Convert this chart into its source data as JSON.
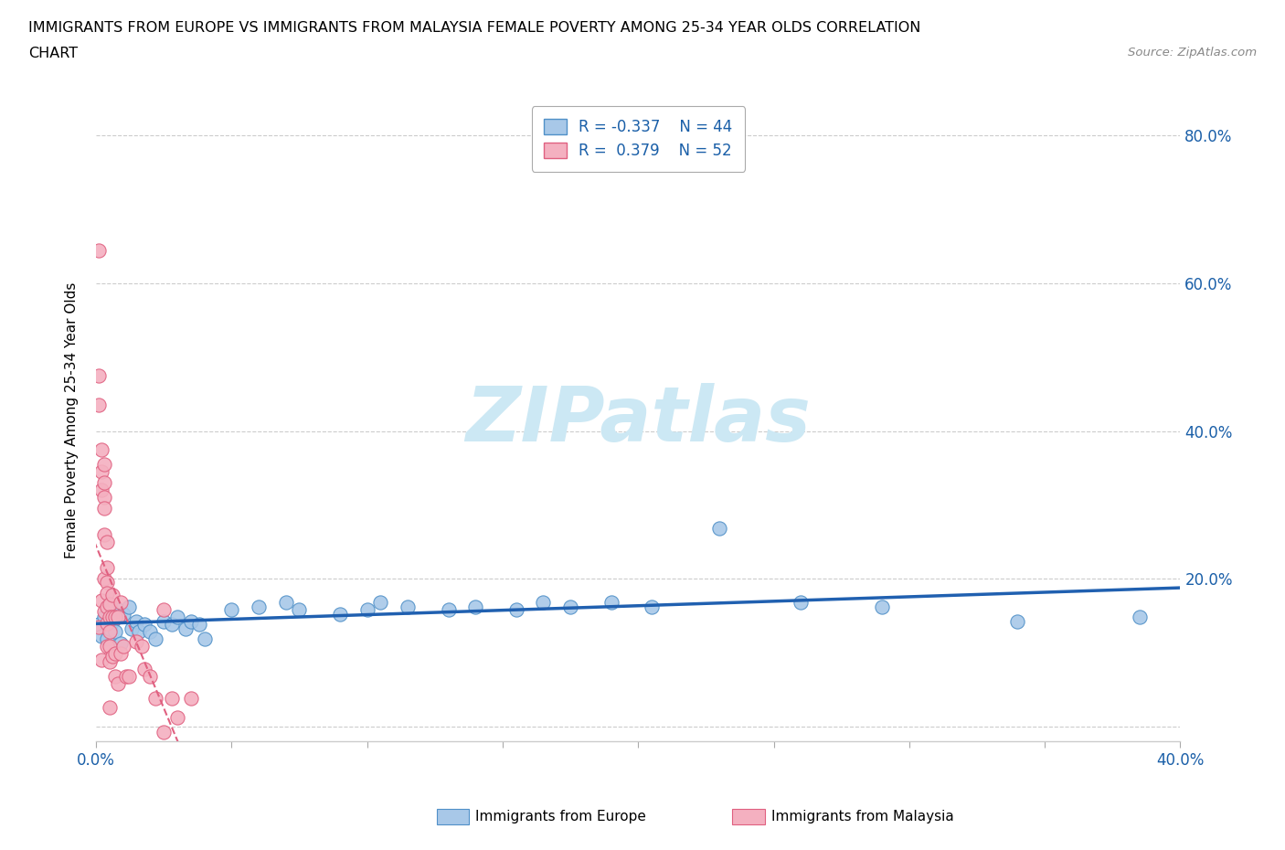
{
  "title_line1": "IMMIGRANTS FROM EUROPE VS IMMIGRANTS FROM MALAYSIA FEMALE POVERTY AMONG 25-34 YEAR OLDS CORRELATION",
  "title_line2": "CHART",
  "source": "Source: ZipAtlas.com",
  "ylabel": "Female Poverty Among 25-34 Year Olds",
  "xlim": [
    0.0,
    0.4
  ],
  "ylim": [
    -0.02,
    0.85
  ],
  "xtick_positions": [
    0.0,
    0.05,
    0.1,
    0.15,
    0.2,
    0.25,
    0.3,
    0.35,
    0.4
  ],
  "xticklabels": [
    "0.0%",
    "",
    "",
    "",
    "",
    "",
    "",
    "",
    "40.0%"
  ],
  "ytick_positions": [
    0.0,
    0.2,
    0.4,
    0.6,
    0.8
  ],
  "yticklabels_right": [
    "",
    "20.0%",
    "40.0%",
    "60.0%",
    "80.0%"
  ],
  "europe_color": "#a8c8e8",
  "europe_edge_color": "#5090c8",
  "malaysia_color": "#f4b0c0",
  "malaysia_edge_color": "#e06080",
  "europe_R": -0.337,
  "europe_N": 44,
  "malaysia_R": 0.379,
  "malaysia_N": 52,
  "watermark": "ZIPatlas",
  "watermark_color": "#cce8f4",
  "legend_text_color": "#1a5fa8",
  "europe_trend_color": "#2060b0",
  "malaysia_trend_color": "#e06080",
  "europe_x": [
    0.001,
    0.002,
    0.003,
    0.004,
    0.005,
    0.006,
    0.007,
    0.008,
    0.009,
    0.01,
    0.012,
    0.013,
    0.015,
    0.016,
    0.018,
    0.02,
    0.022,
    0.025,
    0.028,
    0.03,
    0.033,
    0.035,
    0.038,
    0.04,
    0.05,
    0.06,
    0.07,
    0.075,
    0.09,
    0.1,
    0.105,
    0.115,
    0.13,
    0.14,
    0.155,
    0.165,
    0.175,
    0.19,
    0.205,
    0.23,
    0.26,
    0.29,
    0.34,
    0.385
  ],
  "europe_y": [
    0.138,
    0.122,
    0.148,
    0.118,
    0.132,
    0.142,
    0.128,
    0.158,
    0.112,
    0.152,
    0.162,
    0.132,
    0.142,
    0.128,
    0.138,
    0.128,
    0.118,
    0.142,
    0.138,
    0.148,
    0.132,
    0.142,
    0.138,
    0.118,
    0.158,
    0.162,
    0.168,
    0.158,
    0.152,
    0.158,
    0.168,
    0.162,
    0.158,
    0.162,
    0.158,
    0.168,
    0.162,
    0.168,
    0.162,
    0.268,
    0.168,
    0.162,
    0.142,
    0.148
  ],
  "malaysia_x": [
    0.001,
    0.001,
    0.001,
    0.001,
    0.002,
    0.002,
    0.002,
    0.002,
    0.002,
    0.003,
    0.003,
    0.003,
    0.003,
    0.003,
    0.003,
    0.003,
    0.004,
    0.004,
    0.004,
    0.004,
    0.004,
    0.004,
    0.004,
    0.005,
    0.005,
    0.005,
    0.005,
    0.005,
    0.005,
    0.006,
    0.006,
    0.006,
    0.007,
    0.007,
    0.007,
    0.008,
    0.008,
    0.009,
    0.009,
    0.01,
    0.011,
    0.012,
    0.015,
    0.017,
    0.018,
    0.02,
    0.022,
    0.025,
    0.028,
    0.03,
    0.035,
    0.025
  ],
  "malaysia_y": [
    0.645,
    0.475,
    0.435,
    0.135,
    0.375,
    0.345,
    0.32,
    0.17,
    0.09,
    0.355,
    0.33,
    0.31,
    0.295,
    0.26,
    0.2,
    0.155,
    0.25,
    0.215,
    0.195,
    0.18,
    0.162,
    0.14,
    0.108,
    0.165,
    0.148,
    0.128,
    0.108,
    0.088,
    0.025,
    0.178,
    0.148,
    0.095,
    0.148,
    0.098,
    0.068,
    0.148,
    0.058,
    0.168,
    0.098,
    0.108,
    0.068,
    0.068,
    0.115,
    0.108,
    0.078,
    0.068,
    0.038,
    0.158,
    0.038,
    0.012,
    0.038,
    -0.008
  ]
}
